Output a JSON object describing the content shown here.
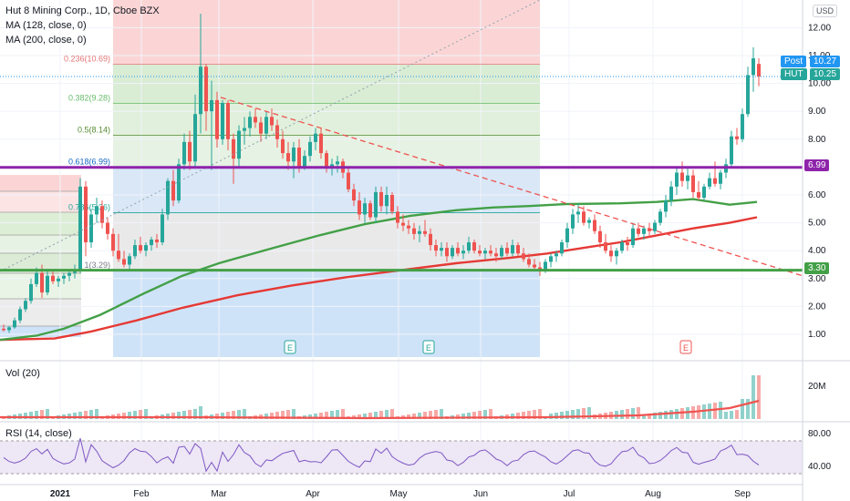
{
  "header": {
    "symbol_line": "Hut 8 Mining Corp., 1D, Cboe BZX",
    "ma1": "MA (128, close, 0)",
    "ma2": "MA (200, close, 0)",
    "vol": "Vol (20)",
    "rsi": "RSI (14, close)",
    "currency": "USD"
  },
  "colors": {
    "up": "#26a69a",
    "down": "#ef5350",
    "ma128": "#43a047",
    "ma200": "#e53935",
    "hline_purple": "#8e24aa",
    "hline_green": "#43a047",
    "price_line": "#2196f3",
    "rsi": "#7e57c2"
  },
  "badges": {
    "post_label": "Post",
    "post_value": "10.27",
    "hut_label": "HUT",
    "hut_value": "10.25",
    "purple_value": "6.99",
    "green_value": "3.30"
  },
  "earnings": [
    "E",
    "E",
    "E"
  ],
  "chart_data": {
    "type": "candlestick",
    "symbol": "HUT",
    "timeframe": "1D",
    "x_labels": [
      "2021",
      "Feb",
      "Mar",
      "Apr",
      "May",
      "Jun",
      "Jul",
      "Aug",
      "Sep"
    ],
    "price_axis": {
      "ticks": [
        1.0,
        2.0,
        3.0,
        4.0,
        5.0,
        6.0,
        7.0,
        8.0,
        9.0,
        10.0,
        11.0,
        12.0
      ],
      "ylim": [
        0.4,
        12.6
      ]
    },
    "last_price": 10.25,
    "post_price": 10.27,
    "horizontal_levels": [
      6.99,
      3.3
    ],
    "fib_big": {
      "levels": [
        {
          "ratio": "0.236",
          "price": 10.69,
          "label": "0.236(10.69)"
        },
        {
          "ratio": "0.382",
          "price": 9.28,
          "label": "0.382(9.28)"
        },
        {
          "ratio": "0.5",
          "price": 8.14,
          "label": "0.5(8.14)"
        },
        {
          "ratio": "0.618",
          "price": 6.99,
          "label": "0.618(6.99)"
        },
        {
          "ratio": "0.786",
          "price": 5.36,
          "label": "0.786(5.36)"
        },
        {
          "ratio": "1",
          "price": 3.29,
          "label": "1(3.29)"
        }
      ]
    },
    "volume_axis": {
      "ticks": [
        "20M"
      ]
    },
    "rsi_axis": {
      "ticks": [
        80.0,
        40.0
      ]
    },
    "ma128": [
      [
        0,
        0.8
      ],
      [
        40,
        0.95
      ],
      [
        70,
        1.2
      ],
      [
        110,
        1.7
      ],
      [
        160,
        2.5
      ],
      [
        200,
        3.1
      ],
      [
        240,
        3.55
      ],
      [
        300,
        4.1
      ],
      [
        350,
        4.55
      ],
      [
        400,
        4.95
      ],
      [
        450,
        5.25
      ],
      [
        500,
        5.45
      ],
      [
        540,
        5.55
      ],
      [
        580,
        5.6
      ],
      [
        620,
        5.67
      ],
      [
        680,
        5.7
      ],
      [
        720,
        5.75
      ],
      [
        760,
        5.85
      ],
      [
        800,
        5.65
      ],
      [
        830,
        5.75
      ]
    ],
    "ma200": [
      [
        0,
        0.8
      ],
      [
        60,
        0.85
      ],
      [
        100,
        1.1
      ],
      [
        150,
        1.5
      ],
      [
        200,
        1.95
      ],
      [
        260,
        2.4
      ],
      [
        320,
        2.75
      ],
      [
        380,
        3.05
      ],
      [
        440,
        3.3
      ],
      [
        500,
        3.55
      ],
      [
        560,
        3.75
      ],
      [
        600,
        3.9
      ],
      [
        640,
        4.1
      ],
      [
        680,
        4.3
      ],
      [
        720,
        4.55
      ],
      [
        760,
        4.8
      ],
      [
        800,
        5.0
      ],
      [
        830,
        5.2
      ]
    ],
    "candles": [
      {
        "x": 4,
        "o": 1.2,
        "h": 1.35,
        "l": 1.1,
        "c": 1.15
      },
      {
        "x": 10,
        "o": 1.15,
        "h": 1.3,
        "l": 1.05,
        "c": 1.25
      },
      {
        "x": 16,
        "o": 1.25,
        "h": 1.6,
        "l": 1.2,
        "c": 1.5
      },
      {
        "x": 22,
        "o": 1.5,
        "h": 2.0,
        "l": 1.4,
        "c": 1.9
      },
      {
        "x": 28,
        "o": 1.9,
        "h": 2.3,
        "l": 1.8,
        "c": 2.2
      },
      {
        "x": 34,
        "o": 2.2,
        "h": 3.0,
        "l": 2.1,
        "c": 2.8
      },
      {
        "x": 40,
        "o": 2.8,
        "h": 3.4,
        "l": 2.7,
        "c": 3.2
      },
      {
        "x": 46,
        "o": 3.2,
        "h": 3.5,
        "l": 2.3,
        "c": 2.5
      },
      {
        "x": 52,
        "o": 2.5,
        "h": 3.3,
        "l": 2.4,
        "c": 3.1
      },
      {
        "x": 58,
        "o": 3.1,
        "h": 3.3,
        "l": 2.8,
        "c": 2.9
      },
      {
        "x": 64,
        "o": 2.9,
        "h": 3.1,
        "l": 2.7,
        "c": 3.0
      },
      {
        "x": 70,
        "o": 3.0,
        "h": 3.2,
        "l": 2.8,
        "c": 3.1
      },
      {
        "x": 76,
        "o": 3.1,
        "h": 3.3,
        "l": 2.9,
        "c": 3.2
      },
      {
        "x": 82,
        "o": 3.2,
        "h": 3.5,
        "l": 3.0,
        "c": 3.3
      },
      {
        "x": 88,
        "o": 3.3,
        "h": 6.6,
        "l": 3.2,
        "c": 6.3
      },
      {
        "x": 94,
        "o": 6.3,
        "h": 6.5,
        "l": 3.8,
        "c": 4.3
      },
      {
        "x": 100,
        "o": 4.3,
        "h": 5.5,
        "l": 4.1,
        "c": 5.3
      },
      {
        "x": 106,
        "o": 5.3,
        "h": 5.9,
        "l": 5.0,
        "c": 5.6
      },
      {
        "x": 112,
        "o": 5.6,
        "h": 5.8,
        "l": 4.8,
        "c": 5.0
      },
      {
        "x": 118,
        "o": 5.0,
        "h": 5.2,
        "l": 4.4,
        "c": 4.6
      },
      {
        "x": 124,
        "o": 4.6,
        "h": 4.8,
        "l": 3.8,
        "c": 4.0
      },
      {
        "x": 130,
        "o": 4.0,
        "h": 4.6,
        "l": 3.6,
        "c": 3.7
      },
      {
        "x": 136,
        "o": 3.7,
        "h": 4.0,
        "l": 3.4,
        "c": 3.5
      },
      {
        "x": 142,
        "o": 3.5,
        "h": 3.9,
        "l": 3.3,
        "c": 3.8
      },
      {
        "x": 148,
        "o": 3.8,
        "h": 4.4,
        "l": 3.7,
        "c": 4.2
      },
      {
        "x": 154,
        "o": 4.2,
        "h": 4.5,
        "l": 3.9,
        "c": 4.0
      },
      {
        "x": 160,
        "o": 4.0,
        "h": 4.3,
        "l": 3.8,
        "c": 4.2
      },
      {
        "x": 166,
        "o": 4.2,
        "h": 4.5,
        "l": 4.0,
        "c": 4.4
      },
      {
        "x": 172,
        "o": 4.4,
        "h": 4.6,
        "l": 4.1,
        "c": 4.3
      },
      {
        "x": 178,
        "o": 4.3,
        "h": 5.5,
        "l": 4.2,
        "c": 5.3
      },
      {
        "x": 184,
        "o": 5.3,
        "h": 6.6,
        "l": 5.1,
        "c": 6.5
      },
      {
        "x": 190,
        "o": 6.5,
        "h": 6.9,
        "l": 5.6,
        "c": 5.8
      },
      {
        "x": 196,
        "o": 5.8,
        "h": 7.3,
        "l": 5.7,
        "c": 7.1
      },
      {
        "x": 202,
        "o": 7.1,
        "h": 8.2,
        "l": 6.9,
        "c": 7.9
      },
      {
        "x": 208,
        "o": 7.9,
        "h": 8.3,
        "l": 6.9,
        "c": 7.2
      },
      {
        "x": 214,
        "o": 7.2,
        "h": 9.6,
        "l": 7.0,
        "c": 8.9
      },
      {
        "x": 220,
        "o": 8.9,
        "h": 12.5,
        "l": 8.2,
        "c": 10.6
      },
      {
        "x": 226,
        "o": 10.6,
        "h": 10.7,
        "l": 8.3,
        "c": 9.0
      },
      {
        "x": 232,
        "o": 9.0,
        "h": 10.1,
        "l": 6.9,
        "c": 9.4
      },
      {
        "x": 238,
        "o": 9.4,
        "h": 9.7,
        "l": 7.7,
        "c": 8.0
      },
      {
        "x": 244,
        "o": 8.0,
        "h": 9.4,
        "l": 7.8,
        "c": 9.3
      },
      {
        "x": 250,
        "o": 9.3,
        "h": 9.4,
        "l": 7.6,
        "c": 8.0
      },
      {
        "x": 256,
        "o": 8.0,
        "h": 8.2,
        "l": 6.4,
        "c": 7.3
      },
      {
        "x": 262,
        "o": 7.3,
        "h": 8.5,
        "l": 7.0,
        "c": 8.3
      },
      {
        "x": 268,
        "o": 8.3,
        "h": 8.8,
        "l": 7.8,
        "c": 8.4
      },
      {
        "x": 274,
        "o": 8.4,
        "h": 9.0,
        "l": 8.1,
        "c": 8.8
      },
      {
        "x": 280,
        "o": 8.8,
        "h": 9.1,
        "l": 8.4,
        "c": 8.6
      },
      {
        "x": 286,
        "o": 8.6,
        "h": 8.8,
        "l": 7.9,
        "c": 8.2
      },
      {
        "x": 292,
        "o": 8.2,
        "h": 9.0,
        "l": 8.0,
        "c": 8.8
      },
      {
        "x": 298,
        "o": 8.8,
        "h": 9.1,
        "l": 8.3,
        "c": 8.5
      },
      {
        "x": 304,
        "o": 8.5,
        "h": 8.7,
        "l": 7.7,
        "c": 8.0
      },
      {
        "x": 310,
        "o": 8.0,
        "h": 8.3,
        "l": 7.3,
        "c": 7.5
      },
      {
        "x": 316,
        "o": 7.5,
        "h": 7.9,
        "l": 6.9,
        "c": 7.2
      },
      {
        "x": 322,
        "o": 7.2,
        "h": 7.9,
        "l": 6.6,
        "c": 7.7
      },
      {
        "x": 328,
        "o": 7.7,
        "h": 8.0,
        "l": 6.8,
        "c": 7.0
      },
      {
        "x": 334,
        "o": 7.0,
        "h": 7.6,
        "l": 6.9,
        "c": 7.4
      },
      {
        "x": 340,
        "o": 7.4,
        "h": 8.1,
        "l": 7.2,
        "c": 7.9
      },
      {
        "x": 346,
        "o": 7.9,
        "h": 8.4,
        "l": 7.6,
        "c": 8.2
      },
      {
        "x": 352,
        "o": 8.2,
        "h": 8.4,
        "l": 7.3,
        "c": 7.5
      },
      {
        "x": 358,
        "o": 7.5,
        "h": 7.6,
        "l": 6.8,
        "c": 7.0
      },
      {
        "x": 364,
        "o": 7.0,
        "h": 7.3,
        "l": 6.7,
        "c": 7.1
      },
      {
        "x": 370,
        "o": 7.1,
        "h": 7.4,
        "l": 6.8,
        "c": 7.2
      },
      {
        "x": 376,
        "o": 7.2,
        "h": 7.3,
        "l": 6.6,
        "c": 6.8
      },
      {
        "x": 382,
        "o": 6.8,
        "h": 7.0,
        "l": 6.1,
        "c": 6.2
      },
      {
        "x": 388,
        "o": 6.2,
        "h": 6.4,
        "l": 5.6,
        "c": 5.8
      },
      {
        "x": 394,
        "o": 5.8,
        "h": 6.1,
        "l": 5.1,
        "c": 5.3
      },
      {
        "x": 400,
        "o": 5.3,
        "h": 5.9,
        "l": 5.0,
        "c": 5.7
      },
      {
        "x": 406,
        "o": 5.7,
        "h": 5.8,
        "l": 5.1,
        "c": 5.2
      },
      {
        "x": 412,
        "o": 5.2,
        "h": 6.3,
        "l": 5.0,
        "c": 6.1
      },
      {
        "x": 418,
        "o": 6.1,
        "h": 6.3,
        "l": 5.4,
        "c": 5.6
      },
      {
        "x": 424,
        "o": 5.6,
        "h": 6.3,
        "l": 5.3,
        "c": 6.0
      },
      {
        "x": 430,
        "o": 6.0,
        "h": 6.1,
        "l": 5.3,
        "c": 5.4
      },
      {
        "x": 436,
        "o": 5.4,
        "h": 5.6,
        "l": 4.8,
        "c": 5.0
      },
      {
        "x": 442,
        "o": 5.0,
        "h": 5.3,
        "l": 4.7,
        "c": 4.9
      },
      {
        "x": 448,
        "o": 4.9,
        "h": 5.1,
        "l": 4.6,
        "c": 4.8
      },
      {
        "x": 454,
        "o": 4.8,
        "h": 5.0,
        "l": 4.4,
        "c": 4.6
      },
      {
        "x": 460,
        "o": 4.6,
        "h": 4.9,
        "l": 4.3,
        "c": 4.7
      },
      {
        "x": 466,
        "o": 4.7,
        "h": 5.1,
        "l": 4.5,
        "c": 4.6
      },
      {
        "x": 472,
        "o": 4.6,
        "h": 4.8,
        "l": 4.0,
        "c": 4.2
      },
      {
        "x": 478,
        "o": 4.2,
        "h": 4.4,
        "l": 3.8,
        "c": 4.0
      },
      {
        "x": 484,
        "o": 4.0,
        "h": 4.3,
        "l": 3.8,
        "c": 4.1
      },
      {
        "x": 490,
        "o": 4.1,
        "h": 4.3,
        "l": 3.6,
        "c": 3.8
      },
      {
        "x": 496,
        "o": 3.8,
        "h": 4.2,
        "l": 3.7,
        "c": 4.1
      },
      {
        "x": 502,
        "o": 4.1,
        "h": 4.3,
        "l": 3.8,
        "c": 3.9
      },
      {
        "x": 508,
        "o": 3.9,
        "h": 4.2,
        "l": 3.7,
        "c": 4.0
      },
      {
        "x": 514,
        "o": 4.0,
        "h": 4.5,
        "l": 3.9,
        "c": 4.3
      },
      {
        "x": 520,
        "o": 4.3,
        "h": 4.4,
        "l": 3.9,
        "c": 4.0
      },
      {
        "x": 526,
        "o": 4.0,
        "h": 4.2,
        "l": 3.8,
        "c": 3.9
      },
      {
        "x": 532,
        "o": 3.9,
        "h": 4.1,
        "l": 3.7,
        "c": 4.0
      },
      {
        "x": 538,
        "o": 4.0,
        "h": 4.2,
        "l": 3.8,
        "c": 3.9
      },
      {
        "x": 544,
        "o": 3.9,
        "h": 4.1,
        "l": 3.6,
        "c": 3.8
      },
      {
        "x": 550,
        "o": 3.8,
        "h": 4.2,
        "l": 3.7,
        "c": 4.1
      },
      {
        "x": 556,
        "o": 4.1,
        "h": 4.3,
        "l": 3.8,
        "c": 3.9
      },
      {
        "x": 562,
        "o": 3.9,
        "h": 4.4,
        "l": 3.8,
        "c": 4.2
      },
      {
        "x": 568,
        "o": 4.2,
        "h": 4.3,
        "l": 3.8,
        "c": 3.9
      },
      {
        "x": 574,
        "o": 3.9,
        "h": 4.1,
        "l": 3.6,
        "c": 3.7
      },
      {
        "x": 580,
        "o": 3.7,
        "h": 3.9,
        "l": 3.4,
        "c": 3.5
      },
      {
        "x": 586,
        "o": 3.5,
        "h": 3.7,
        "l": 3.3,
        "c": 3.4
      },
      {
        "x": 592,
        "o": 3.4,
        "h": 3.6,
        "l": 3.1,
        "c": 3.3
      },
      {
        "x": 598,
        "o": 3.3,
        "h": 3.7,
        "l": 3.2,
        "c": 3.6
      },
      {
        "x": 604,
        "o": 3.6,
        "h": 3.9,
        "l": 3.4,
        "c": 3.8
      },
      {
        "x": 610,
        "o": 3.8,
        "h": 4.0,
        "l": 3.6,
        "c": 3.9
      },
      {
        "x": 616,
        "o": 3.9,
        "h": 4.4,
        "l": 3.8,
        "c": 4.3
      },
      {
        "x": 622,
        "o": 4.3,
        "h": 5.0,
        "l": 4.1,
        "c": 4.8
      },
      {
        "x": 628,
        "o": 4.8,
        "h": 5.5,
        "l": 4.6,
        "c": 5.3
      },
      {
        "x": 634,
        "o": 5.3,
        "h": 5.7,
        "l": 5.0,
        "c": 5.4
      },
      {
        "x": 640,
        "o": 5.4,
        "h": 5.6,
        "l": 4.9,
        "c": 5.0
      },
      {
        "x": 646,
        "o": 5.0,
        "h": 5.2,
        "l": 4.8,
        "c": 5.1
      },
      {
        "x": 652,
        "o": 5.1,
        "h": 5.3,
        "l": 4.6,
        "c": 4.7
      },
      {
        "x": 658,
        "o": 4.7,
        "h": 4.9,
        "l": 4.1,
        "c": 4.3
      },
      {
        "x": 664,
        "o": 4.3,
        "h": 4.6,
        "l": 3.9,
        "c": 4.0
      },
      {
        "x": 670,
        "o": 4.0,
        "h": 4.2,
        "l": 3.6,
        "c": 3.8
      },
      {
        "x": 676,
        "o": 3.8,
        "h": 4.1,
        "l": 3.5,
        "c": 4.0
      },
      {
        "x": 682,
        "o": 4.0,
        "h": 4.4,
        "l": 3.9,
        "c": 4.3
      },
      {
        "x": 688,
        "o": 4.3,
        "h": 4.5,
        "l": 4.0,
        "c": 4.2
      },
      {
        "x": 694,
        "o": 4.2,
        "h": 5.0,
        "l": 4.1,
        "c": 4.8
      },
      {
        "x": 700,
        "o": 4.8,
        "h": 5.0,
        "l": 4.5,
        "c": 4.6
      },
      {
        "x": 706,
        "o": 4.6,
        "h": 4.9,
        "l": 4.4,
        "c": 4.8
      },
      {
        "x": 712,
        "o": 4.8,
        "h": 5.0,
        "l": 4.5,
        "c": 4.7
      },
      {
        "x": 718,
        "o": 4.7,
        "h": 5.1,
        "l": 4.6,
        "c": 5.0
      },
      {
        "x": 724,
        "o": 5.0,
        "h": 5.5,
        "l": 4.9,
        "c": 5.4
      },
      {
        "x": 730,
        "o": 5.4,
        "h": 6.0,
        "l": 5.2,
        "c": 5.8
      },
      {
        "x": 736,
        "o": 5.8,
        "h": 6.5,
        "l": 5.6,
        "c": 6.3
      },
      {
        "x": 742,
        "o": 6.3,
        "h": 7.0,
        "l": 6.0,
        "c": 6.8
      },
      {
        "x": 748,
        "o": 6.8,
        "h": 7.2,
        "l": 6.3,
        "c": 6.5
      },
      {
        "x": 754,
        "o": 6.5,
        "h": 7.0,
        "l": 6.2,
        "c": 6.7
      },
      {
        "x": 760,
        "o": 6.7,
        "h": 6.9,
        "l": 5.9,
        "c": 6.1
      },
      {
        "x": 766,
        "o": 6.1,
        "h": 6.5,
        "l": 5.8,
        "c": 5.9
      },
      {
        "x": 772,
        "o": 5.9,
        "h": 6.4,
        "l": 5.8,
        "c": 6.3
      },
      {
        "x": 778,
        "o": 6.3,
        "h": 6.8,
        "l": 6.2,
        "c": 6.6
      },
      {
        "x": 784,
        "o": 6.6,
        "h": 7.2,
        "l": 6.3,
        "c": 6.4
      },
      {
        "x": 790,
        "o": 6.4,
        "h": 6.9,
        "l": 6.2,
        "c": 6.8
      },
      {
        "x": 796,
        "o": 6.8,
        "h": 7.3,
        "l": 6.6,
        "c": 7.1
      },
      {
        "x": 802,
        "o": 7.1,
        "h": 8.3,
        "l": 7.0,
        "c": 8.1
      },
      {
        "x": 808,
        "o": 8.1,
        "h": 8.4,
        "l": 7.8,
        "c": 8.0
      },
      {
        "x": 814,
        "o": 8.0,
        "h": 9.1,
        "l": 7.9,
        "c": 8.9
      },
      {
        "x": 820,
        "o": 8.9,
        "h": 10.6,
        "l": 8.8,
        "c": 10.3
      },
      {
        "x": 826,
        "o": 10.3,
        "h": 11.3,
        "l": 9.7,
        "c": 10.9
      },
      {
        "x": 832,
        "o": 10.7,
        "h": 10.9,
        "l": 9.9,
        "c": 10.25
      }
    ]
  }
}
